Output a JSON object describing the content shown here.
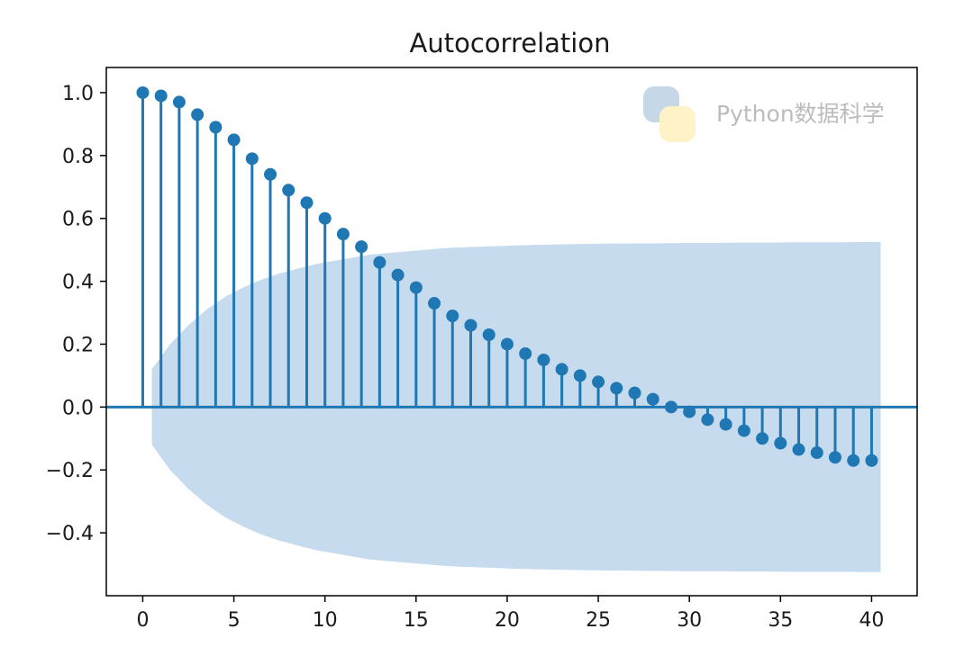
{
  "chart_data": {
    "type": "stem",
    "title": "Autocorrelation",
    "xlabel": "",
    "ylabel": "",
    "xlim": [
      -2,
      42.5
    ],
    "ylim": [
      -0.6,
      1.08
    ],
    "x_ticks": [
      0,
      5,
      10,
      15,
      20,
      25,
      30,
      35,
      40
    ],
    "x_tick_labels": [
      "0",
      "5",
      "10",
      "15",
      "20",
      "25",
      "30",
      "35",
      "40"
    ],
    "y_ticks": [
      1.0,
      0.8,
      0.6,
      0.4,
      0.2,
      0.0,
      -0.2,
      -0.4
    ],
    "y_tick_labels": [
      "1.0",
      "0.8",
      "0.6",
      "0.4",
      "0.2",
      "0.0",
      "−0.2",
      "−0.4"
    ],
    "grid": false,
    "lags": [
      0,
      1,
      2,
      3,
      4,
      5,
      6,
      7,
      8,
      9,
      10,
      11,
      12,
      13,
      14,
      15,
      16,
      17,
      18,
      19,
      20,
      21,
      22,
      23,
      24,
      25,
      26,
      27,
      28,
      29,
      30,
      31,
      32,
      33,
      34,
      35,
      36,
      37,
      38,
      39,
      40
    ],
    "values": [
      1.0,
      0.99,
      0.97,
      0.93,
      0.89,
      0.85,
      0.79,
      0.74,
      0.69,
      0.65,
      0.6,
      0.55,
      0.51,
      0.46,
      0.42,
      0.38,
      0.33,
      0.29,
      0.26,
      0.23,
      0.2,
      0.17,
      0.15,
      0.12,
      0.1,
      0.08,
      0.06,
      0.045,
      0.025,
      0.0,
      -0.015,
      -0.04,
      -0.055,
      -0.075,
      -0.1,
      -0.115,
      -0.135,
      -0.145,
      -0.16,
      -0.17,
      -0.17
    ],
    "confidence_band": {
      "x_start": 0.5,
      "x_end": 40.5,
      "upper": [
        0.12,
        0.2,
        0.26,
        0.31,
        0.35,
        0.38,
        0.405,
        0.425,
        0.44,
        0.455,
        0.465,
        0.475,
        0.485,
        0.49,
        0.495,
        0.5,
        0.505,
        0.508,
        0.51,
        0.512,
        0.514,
        0.516,
        0.517,
        0.518,
        0.519,
        0.52,
        0.52,
        0.521,
        0.521,
        0.522,
        0.522,
        0.522,
        0.523,
        0.523,
        0.523,
        0.524,
        0.524,
        0.524,
        0.524,
        0.525,
        0.525
      ]
    },
    "colors": {
      "stem": "#1f77b4",
      "band": "#c6dbed",
      "axes": "#000000"
    }
  },
  "watermark": {
    "text": "Python数据科学",
    "icon": "python-logo-icon"
  }
}
